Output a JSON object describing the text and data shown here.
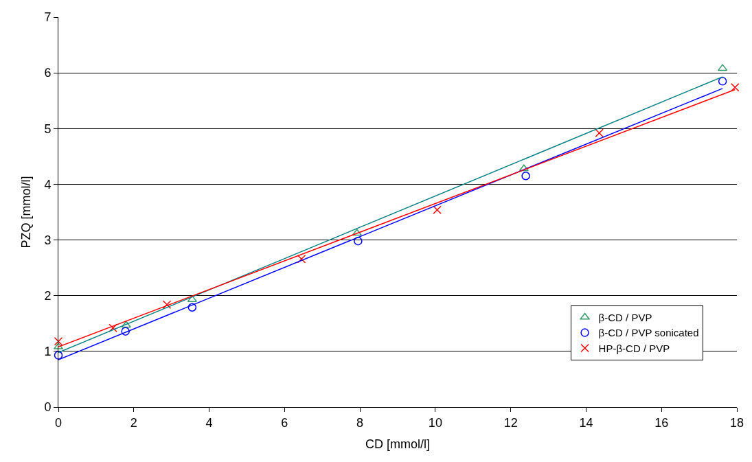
{
  "chart_data": {
    "type": "scatter",
    "xlabel": "CD [mmol/l]",
    "ylabel": "PZQ [mmol/l]",
    "xlim": [
      0,
      18
    ],
    "xticks": [
      0,
      2,
      4,
      6,
      8,
      10,
      12,
      14,
      16,
      18
    ],
    "ylim": [
      0,
      7
    ],
    "yticks": [
      0,
      1,
      2,
      3,
      4,
      5,
      6,
      7
    ],
    "grid": "y",
    "legend": "bottom right",
    "series": [
      {
        "name": "β-CD / PVP",
        "color": "#339966",
        "marker": "triangle",
        "x": [
          0,
          1.8,
          3.55,
          7.92,
          12.35,
          17.62
        ],
        "values": [
          1.08,
          1.47,
          1.93,
          3.12,
          4.28,
          6.08
        ]
      },
      {
        "name": "β-CD / PVP sonicated",
        "color": "#0000ff",
        "marker": "circle",
        "x": [
          0,
          1.78,
          3.55,
          7.95,
          12.4,
          17.62
        ],
        "values": [
          0.93,
          1.36,
          1.79,
          2.98,
          4.15,
          5.85
        ]
      },
      {
        "name": "HP-β-CD / PVP",
        "color": "#ff0000",
        "marker": "cross",
        "x": [
          0,
          1.45,
          2.88,
          6.45,
          10.05,
          14.35,
          17.95
        ],
        "values": [
          1.18,
          1.42,
          1.84,
          2.66,
          3.54,
          4.92,
          5.74
        ]
      },
      {
        "type": "line",
        "color": "#008080",
        "x": [
          0,
          17.62
        ],
        "values": [
          0.98,
          5.93
        ]
      },
      {
        "type": "line",
        "color": "#0000ff",
        "x": [
          0,
          17.62
        ],
        "values": [
          0.85,
          5.72
        ]
      },
      {
        "type": "line",
        "color": "#ff0000",
        "x": [
          0,
          17.95
        ],
        "values": [
          1.08,
          5.7
        ]
      }
    ]
  }
}
